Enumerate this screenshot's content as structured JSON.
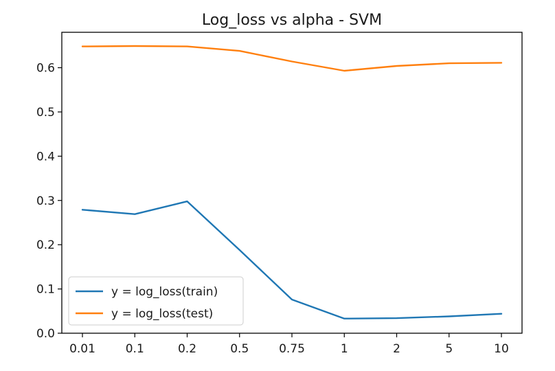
{
  "chart_data": {
    "type": "line",
    "title": "Log_loss vs alpha - SVM",
    "xlabel": "",
    "ylabel": "",
    "categories": [
      "0.01",
      "0.1",
      "0.2",
      "0.5",
      "0.75",
      "1",
      "2",
      "5",
      "10"
    ],
    "yticks": [
      "0.0",
      "0.1",
      "0.2",
      "0.3",
      "0.4",
      "0.5",
      "0.6"
    ],
    "ylim": [
      0,
      0.68
    ],
    "grid": false,
    "legend_position": "lower-left",
    "series": [
      {
        "name": "y = log_loss(train)",
        "color": "#1f77b4",
        "values": [
          0.279,
          0.269,
          0.298,
          0.188,
          0.076,
          0.033,
          0.034,
          0.038,
          0.044
        ]
      },
      {
        "name": "y = log_loss(test)",
        "color": "#ff7f0e",
        "values": [
          0.648,
          0.649,
          0.648,
          0.638,
          0.614,
          0.593,
          0.604,
          0.61,
          0.611
        ]
      }
    ]
  }
}
